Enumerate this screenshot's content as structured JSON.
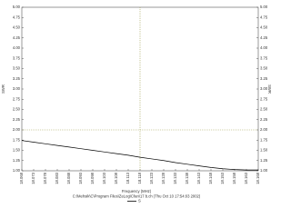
{
  "chart_data": {
    "type": "line",
    "x_label": "Frequency (MHz)",
    "y_label": "SWR",
    "y2_label": "SWR",
    "caption": "C:\\Mehsik\\C\\Program Files\\ZeLog\\Cfan\\17 b.ch  (Thu Oct 10 17:54:03 2002)",
    "x": [
      18.068,
      18.073,
      18.078,
      18.083,
      18.088,
      18.093,
      18.098,
      18.103,
      18.108,
      18.113,
      18.118,
      18.123,
      18.128,
      18.133,
      18.138,
      18.143,
      18.148,
      18.153,
      18.158,
      18.163,
      18.168
    ],
    "series": [
      {
        "name": "S",
        "color": "#000000",
        "values": [
          1.74,
          1.7,
          1.66,
          1.62,
          1.58,
          1.54,
          1.5,
          1.46,
          1.42,
          1.38,
          1.33,
          1.29,
          1.25,
          1.2,
          1.16,
          1.12,
          1.08,
          1.05,
          1.03,
          1.02,
          1.02
        ]
      }
    ],
    "xlim": [
      18.068,
      18.168
    ],
    "xticks": [
      18.068,
      18.073,
      18.078,
      18.083,
      18.088,
      18.093,
      18.098,
      18.103,
      18.108,
      18.113,
      18.118,
      18.123,
      18.128,
      18.133,
      18.138,
      18.143,
      18.148,
      18.153,
      18.158,
      18.163,
      18.168
    ],
    "ylim": [
      1,
      5
    ],
    "yticks": [
      {
        "value": 1,
        "label": "1.00"
      },
      {
        "value": 1.25,
        "label": "1.25"
      },
      {
        "value": 1.5,
        "label": "1.50"
      },
      {
        "value": 1.75,
        "label": "1.75"
      },
      {
        "value": 2,
        "label": "2.00"
      },
      {
        "value": 2.25,
        "label": "2.25"
      },
      {
        "value": 2.5,
        "label": "2.50"
      },
      {
        "value": 2.75,
        "label": "2.75"
      },
      {
        "value": 3,
        "label": "3.00"
      },
      {
        "value": 3.25,
        "label": "3.25"
      },
      {
        "value": 3.5,
        "label": "3.50"
      },
      {
        "value": 3.75,
        "label": "3.75"
      },
      {
        "value": 4,
        "label": "4.00"
      },
      {
        "value": 4.25,
        "label": "4.25"
      },
      {
        "value": 4.5,
        "label": "4.50"
      },
      {
        "value": 4.75,
        "label": "4.75"
      },
      {
        "value": 5,
        "label": "5.00"
      }
    ],
    "crosshair": {
      "x": 18.118,
      "y": 2
    },
    "crosshair_color": "#a0a050",
    "grid": false
  }
}
